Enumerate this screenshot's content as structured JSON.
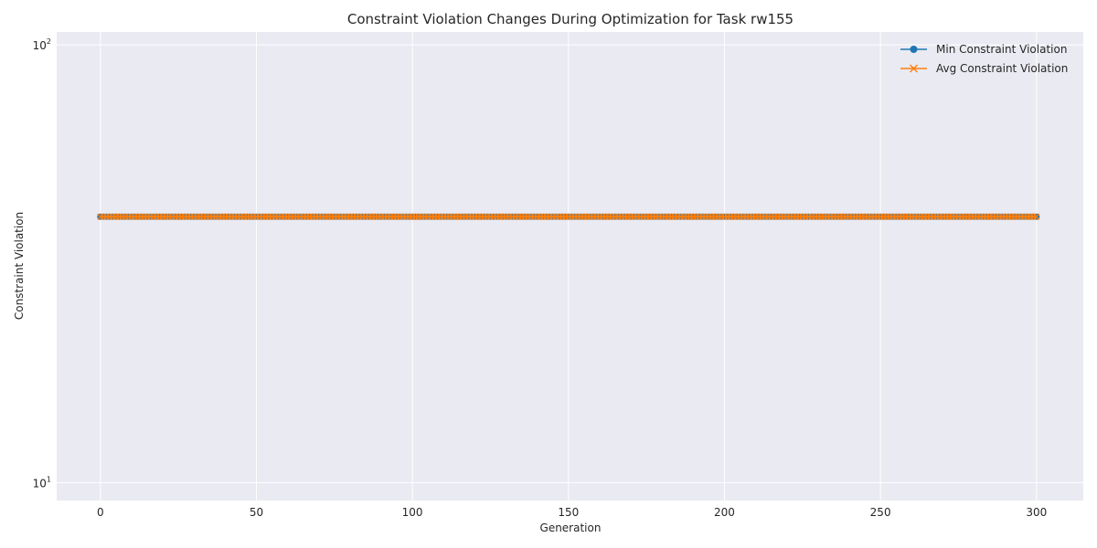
{
  "chart_data": {
    "type": "line",
    "title": "Constraint Violation Changes During Optimization for Task rw155",
    "xlabel": "Generation",
    "ylabel": "Constraint Violation",
    "xlim": [
      -14,
      315
    ],
    "ylim": [
      9.1,
      107
    ],
    "yscale": "log",
    "grid": true,
    "legend_position": "top-right",
    "x_ticks": [
      0,
      50,
      100,
      150,
      200,
      250,
      300
    ],
    "x_tick_labels": [
      "0",
      "50",
      "100",
      "150",
      "200",
      "250",
      "300"
    ],
    "y_ticks": [
      10,
      100
    ],
    "y_tick_labels": [
      {
        "base": "10",
        "exp": "1"
      },
      {
        "base": "10",
        "exp": "2"
      }
    ],
    "generations": {
      "start": 0,
      "end": 300
    },
    "series": [
      {
        "name": "Min Constraint Violation",
        "marker": "circle",
        "color": "#1f77b4",
        "constant_value": 40.5
      },
      {
        "name": "Avg Constraint Violation",
        "marker": "x",
        "color": "#ff7f0e",
        "constant_value": 40.5
      }
    ],
    "plot_background": "#eaeaf2",
    "grid_color": "#ffffff"
  }
}
